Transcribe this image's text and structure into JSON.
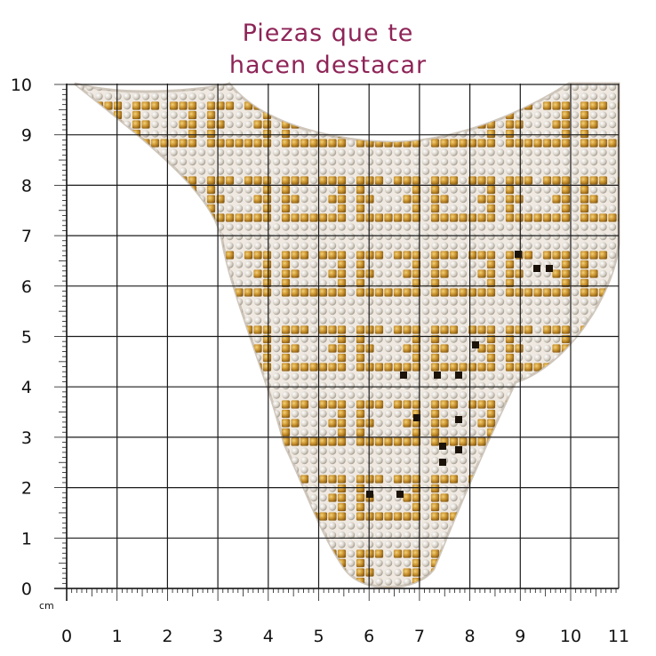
{
  "title_line1": "Piezas que te",
  "title_line2": "hacen destacar",
  "ruler": {
    "unit": "cm",
    "x_labels": [
      "0",
      "1",
      "2",
      "3",
      "4",
      "5",
      "6",
      "7",
      "8",
      "9",
      "10",
      "11"
    ],
    "y_labels": [
      "0",
      "1",
      "2",
      "3",
      "4",
      "5",
      "6",
      "7",
      "8",
      "9",
      "10"
    ]
  },
  "colors": {
    "title": "#8e2457",
    "gold": "#c9922e",
    "silver": "#d9d4cc",
    "base": "#efe9e2",
    "grid": "#1a1a1a"
  },
  "product": {
    "kind": "rhinestone-collar-applique"
  }
}
